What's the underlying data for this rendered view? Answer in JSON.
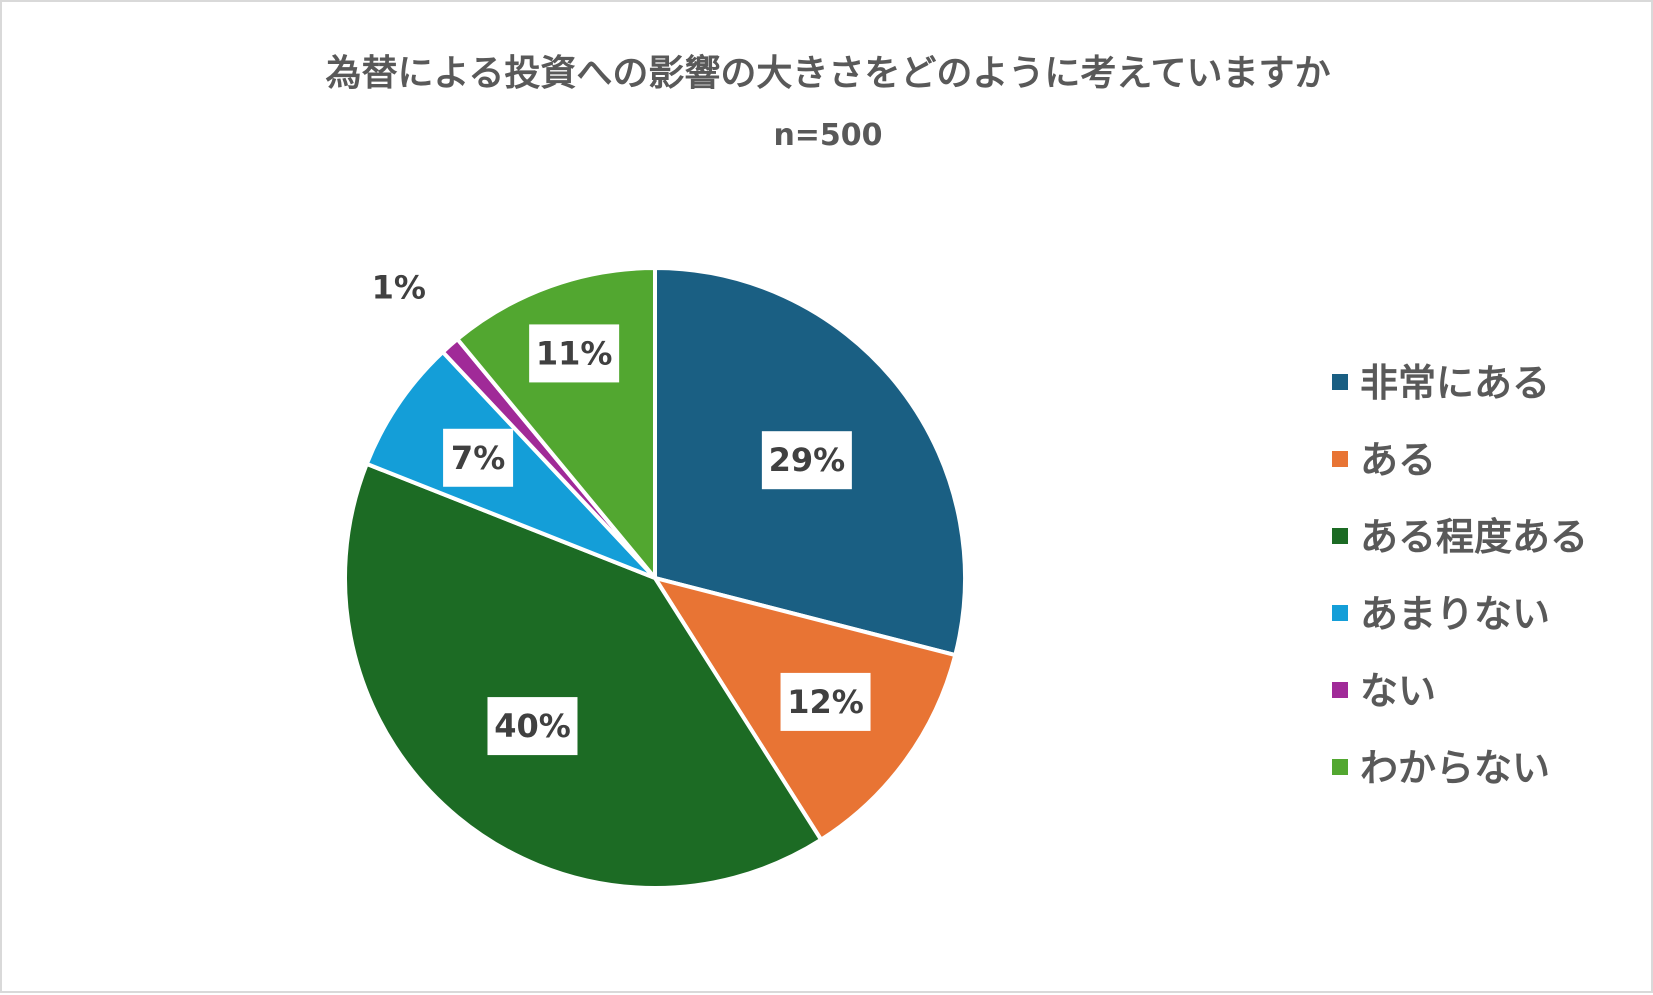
{
  "chart_data": {
    "type": "pie",
    "title": "為替による投資への影響の大きさをどのように考えていますか",
    "subtitle": "n=500",
    "categories": [
      "非常にある",
      "ある",
      "ある程度ある",
      "あまりない",
      "ない",
      "わからない"
    ],
    "values": [
      29,
      12,
      40,
      7,
      1,
      11
    ],
    "value_labels": [
      "29%",
      "12%",
      "40%",
      "7%",
      "1%",
      "11%"
    ],
    "colors": [
      "#1a5f83",
      "#e87434",
      "#1c6b24",
      "#149ed8",
      "#a02a98",
      "#52a730"
    ],
    "legend_position": "right",
    "start_angle": "12 o'clock, clockwise"
  }
}
